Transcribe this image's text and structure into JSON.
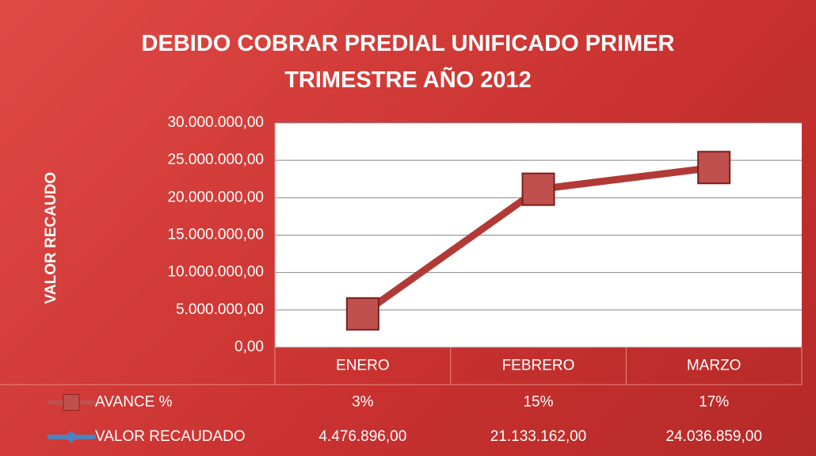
{
  "chart_data": {
    "type": "line",
    "title": "DEBIDO COBRAR PREDIAL UNIFICADO PRIMER TRIMESTRE AÑO 2012",
    "y_label": "VALOR  RECAUDO",
    "categories": [
      "ENERO",
      "FEBRERO",
      "MARZO"
    ],
    "series": [
      {
        "name": "AVANCE %",
        "color": "#c0504d",
        "marker": "square",
        "values": [
          3,
          15,
          17
        ],
        "value_labels": [
          "3%",
          "15%",
          "17%"
        ]
      },
      {
        "name": "VALOR RECAUDADO",
        "color": "#4f81bd",
        "line_color": "#b23a36",
        "marker": "diamond",
        "values": [
          4476896,
          21133162,
          24036859
        ],
        "value_labels": [
          "4.476.896,00",
          "21.133.162,00",
          "24.036.859,00"
        ]
      }
    ],
    "ylim": [
      0,
      30000000
    ],
    "yticks": [
      {
        "value": 0,
        "label": "0,00"
      },
      {
        "value": 5000000,
        "label": "5.000.000,00"
      },
      {
        "value": 10000000,
        "label": "10.000.000,00"
      },
      {
        "value": 15000000,
        "label": "15.000.000,00"
      },
      {
        "value": 20000000,
        "label": "20.000.000,00"
      },
      {
        "value": 25000000,
        "label": "25.000.000,00"
      },
      {
        "value": 30000000,
        "label": "30.000.000,00"
      }
    ],
    "grid": true,
    "data_table": true
  }
}
